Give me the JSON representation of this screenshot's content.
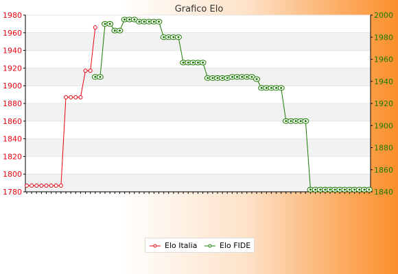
{
  "colors": {
    "series1": "#e8000d",
    "series2": "#1a7a00",
    "grid_band": "#f2f2f2",
    "axis": "#000000"
  },
  "chart_data": {
    "type": "line",
    "title": "Grafico Elo",
    "grid": true,
    "legend": "bottom-center",
    "yleft": {
      "lim": [
        1780,
        1980
      ],
      "ticks": [
        1780,
        1800,
        1820,
        1840,
        1860,
        1880,
        1900,
        1920,
        1940,
        1960,
        1980
      ]
    },
    "yright": {
      "lim": [
        1840,
        2000
      ],
      "ticks": [
        1840,
        1860,
        1880,
        1900,
        1920,
        1940,
        1960,
        1980,
        2000
      ]
    },
    "x_count": 71,
    "series": [
      {
        "name": "Elo Italia",
        "axis": "left",
        "x": [
          0,
          1,
          2,
          3,
          4,
          5,
          6,
          7,
          8,
          9,
          10,
          11,
          12,
          13,
          14
        ],
        "values": [
          1787,
          1787,
          1787,
          1787,
          1787,
          1787,
          1787,
          1787,
          1887,
          1887,
          1887,
          1887,
          1917,
          1917,
          1966
        ]
      },
      {
        "name": "Elo FIDE",
        "axis": "right",
        "x": [
          14,
          15,
          16,
          17,
          18,
          19,
          20,
          21,
          22,
          23,
          24,
          25,
          26,
          27,
          28,
          29,
          30,
          31,
          32,
          33,
          34,
          35,
          36,
          37,
          38,
          39,
          40,
          41,
          42,
          43,
          44,
          45,
          46,
          47,
          48,
          49,
          50,
          51,
          52,
          53,
          54,
          55,
          56,
          57,
          58,
          59,
          60,
          61,
          62,
          63,
          64,
          65,
          66,
          67,
          68,
          69,
          70
        ],
        "values": [
          1944,
          1944,
          1992,
          1992,
          1986,
          1986,
          1996,
          1996,
          1996,
          1994,
          1994,
          1994,
          1994,
          1994,
          1980,
          1980,
          1980,
          1980,
          1957,
          1957,
          1957,
          1957,
          1957,
          1943,
          1943,
          1943,
          1943,
          1943,
          1944,
          1944,
          1944,
          1944,
          1944,
          1942,
          1934,
          1934,
          1934,
          1934,
          1934,
          1904,
          1904,
          1904,
          1904,
          1904,
          1842,
          1842,
          1842,
          1842,
          1842,
          1842,
          1842,
          1842,
          1842,
          1842,
          1842,
          1842,
          1842
        ]
      }
    ]
  }
}
